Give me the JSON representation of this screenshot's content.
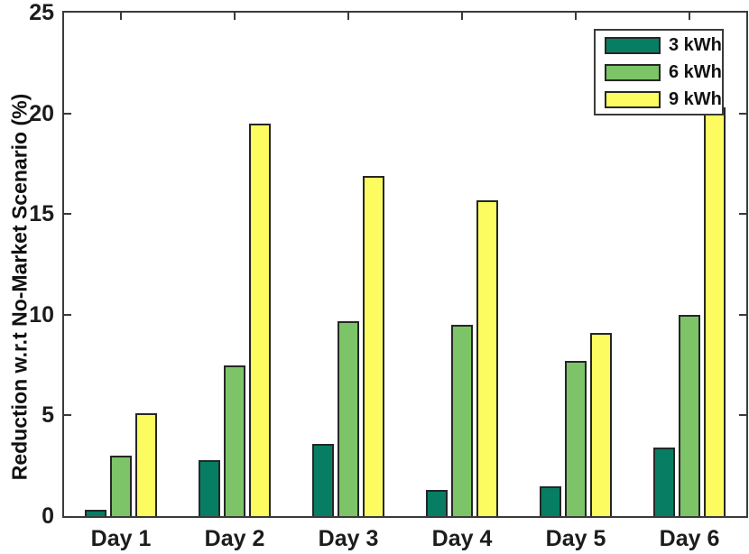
{
  "chart_data": {
    "type": "bar",
    "title": "",
    "xlabel": "",
    "ylabel": "Reduction w.r.t No-Market Scenario (%)",
    "categories": [
      "Day 1",
      "Day 2",
      "Day 3",
      "Day 4",
      "Day 5",
      "Day 6"
    ],
    "series": [
      {
        "name": "3 kWh",
        "color": "#077E63",
        "values": [
          0.3,
          2.8,
          3.6,
          1.3,
          1.5,
          3.4
        ]
      },
      {
        "name": "6 kWh",
        "color": "#7CC467",
        "values": [
          3.0,
          7.5,
          9.7,
          9.5,
          7.7,
          10.0
        ]
      },
      {
        "name": "9 kWh",
        "color": "#FCFC60",
        "values": [
          5.1,
          19.5,
          16.9,
          15.7,
          9.1,
          20.3
        ]
      }
    ],
    "ylim": [
      0,
      25
    ],
    "yticks": [
      0,
      5,
      10,
      15,
      20,
      25
    ],
    "legend_position": "top-right",
    "grid": false
  },
  "colors": {
    "axis": "#3A3A3A",
    "bar_edge": "#262626",
    "text": "#1C1C1C",
    "background": "#FFFFFF"
  }
}
